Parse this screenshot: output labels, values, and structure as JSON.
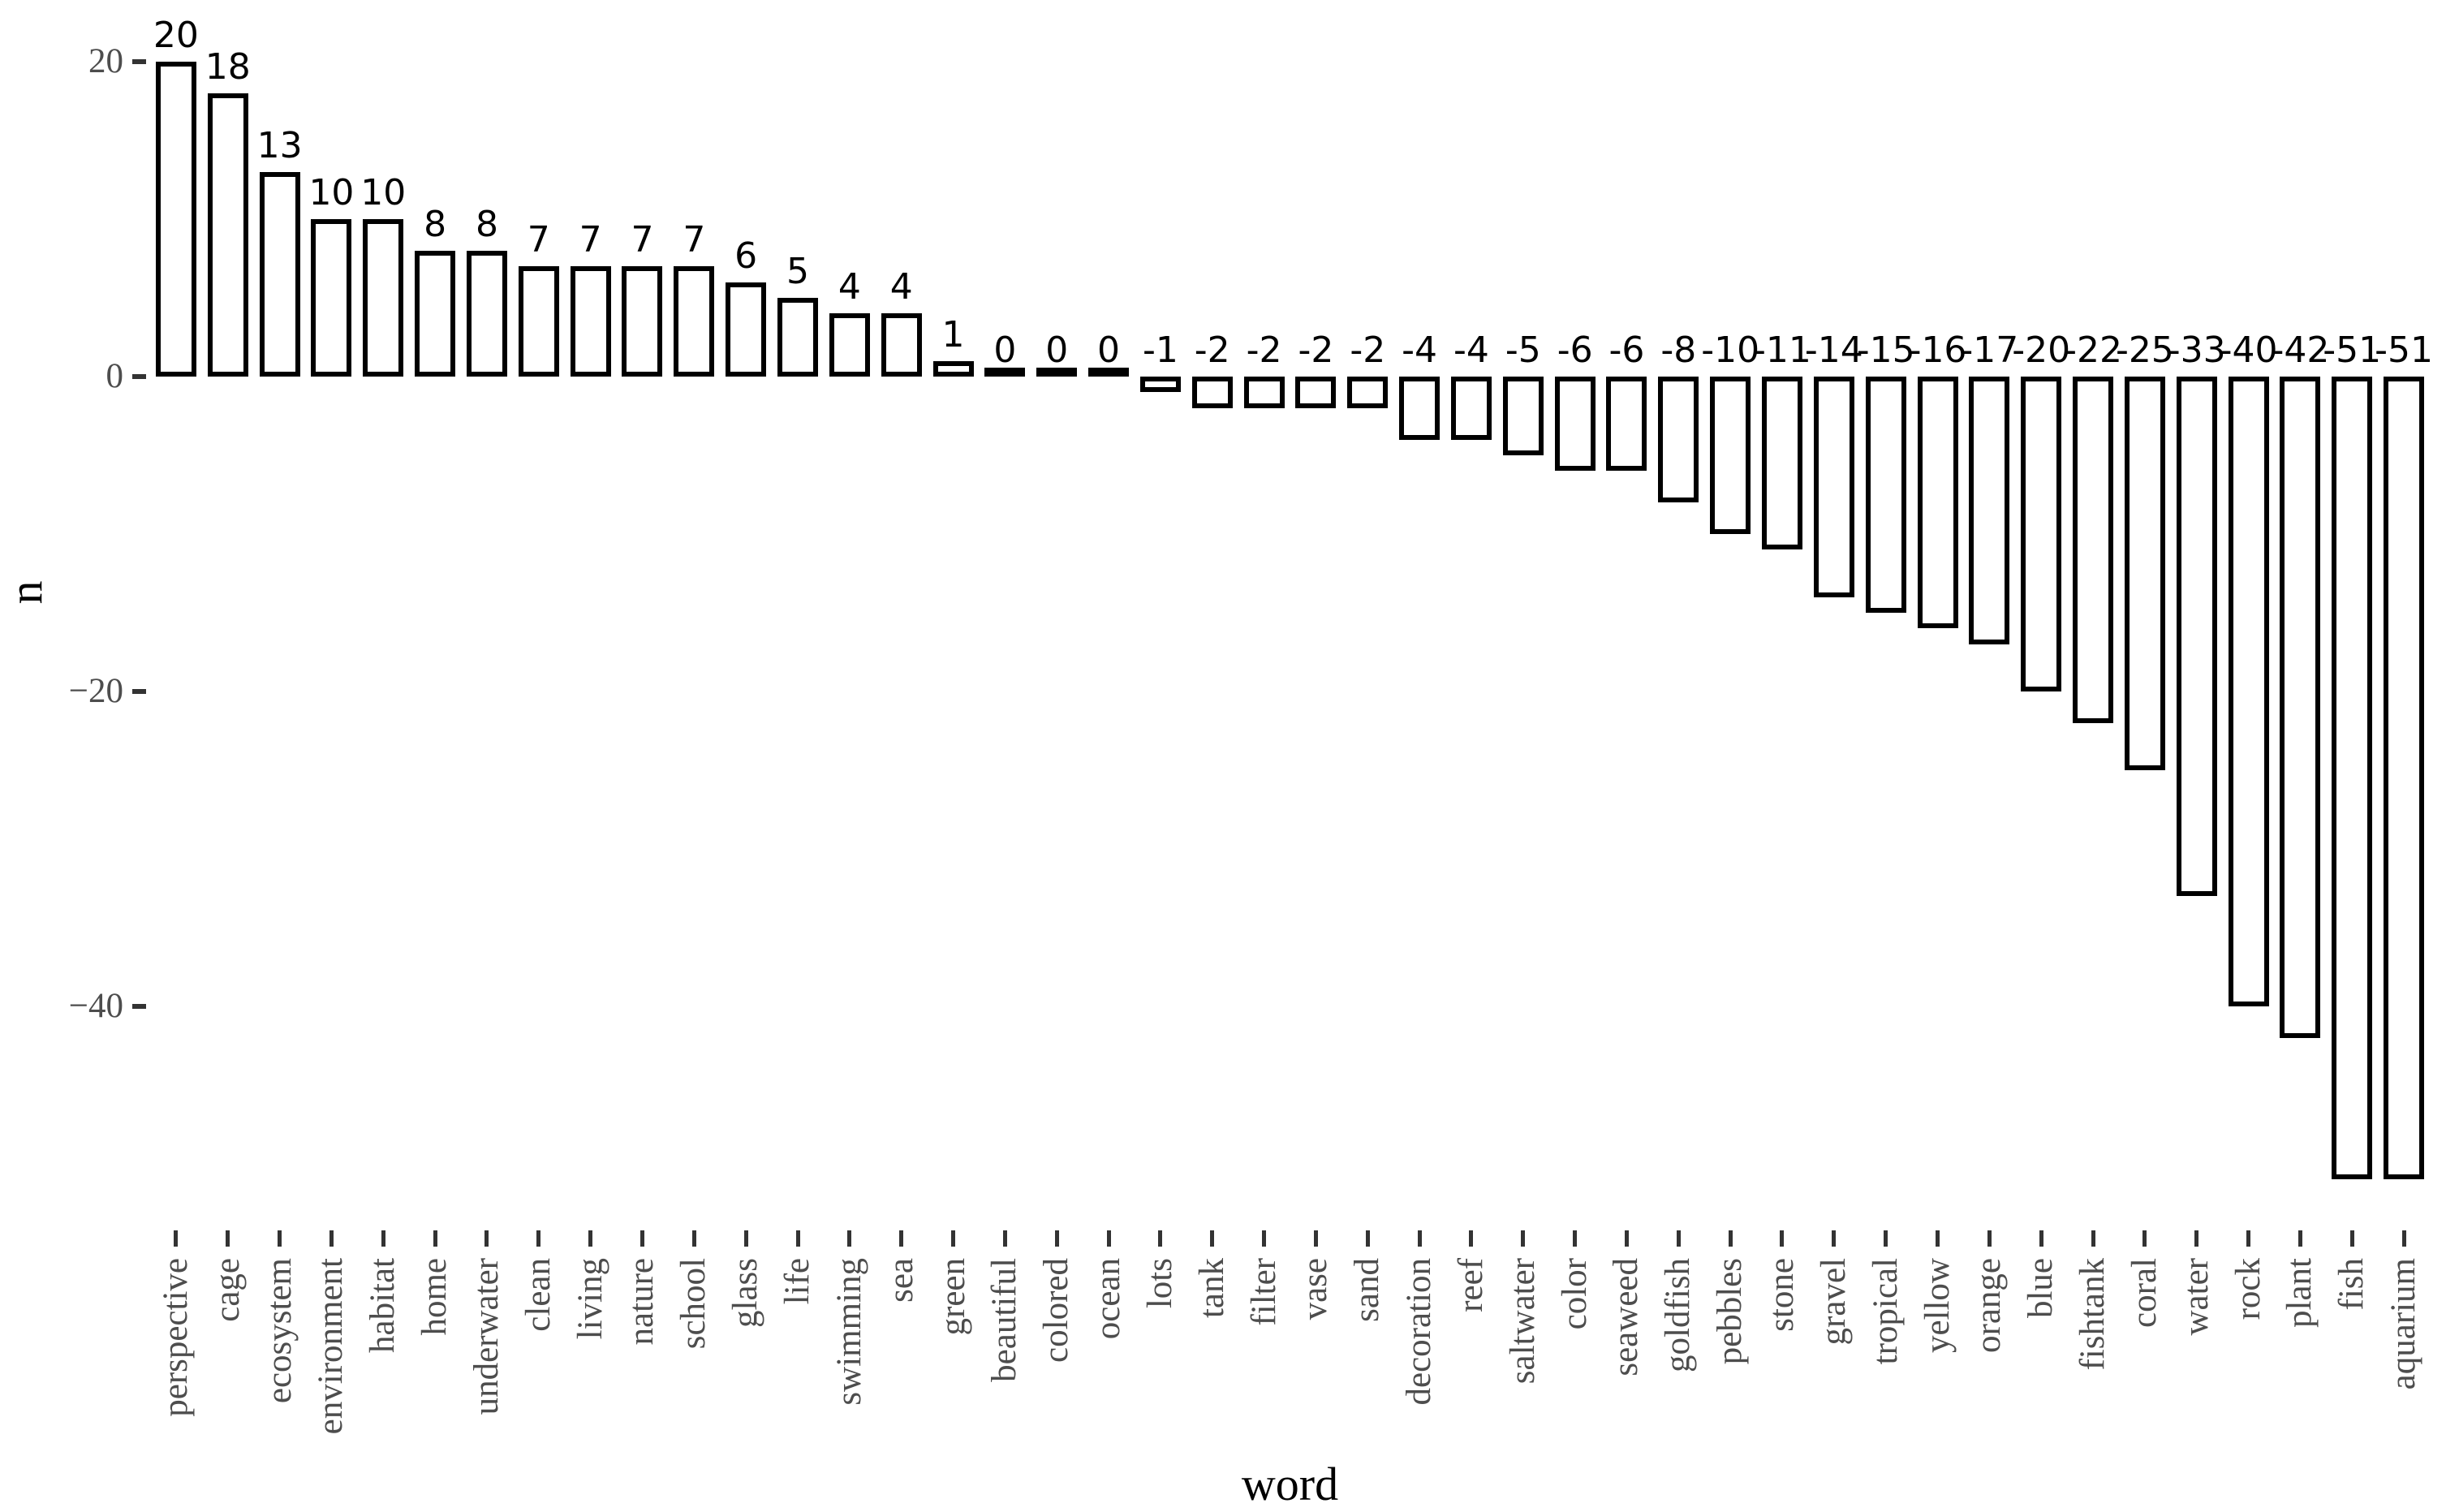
{
  "chart_data": {
    "type": "bar",
    "title": "",
    "xlabel": "word",
    "ylabel": "n",
    "categories": [
      "perspective",
      "cage",
      "ecosystem",
      "environment",
      "habitat",
      "home",
      "underwater",
      "clean",
      "living",
      "nature",
      "school",
      "glass",
      "life",
      "swimming",
      "sea",
      "green",
      "beautiful",
      "colored",
      "ocean",
      "lots",
      "tank",
      "filter",
      "vase",
      "sand",
      "decoration",
      "reef",
      "saltwater",
      "color",
      "seaweed",
      "goldfish",
      "pebbles",
      "stone",
      "gravel",
      "tropical",
      "yellow",
      "orange",
      "blue",
      "fishtank",
      "coral",
      "water",
      "rock",
      "plant",
      "fish",
      "aquarium"
    ],
    "values": [
      20,
      18,
      13,
      10,
      10,
      8,
      8,
      7,
      7,
      7,
      7,
      6,
      5,
      4,
      4,
      1,
      0,
      0,
      0,
      -1,
      -2,
      -2,
      -2,
      -2,
      -4,
      -4,
      -5,
      -6,
      -6,
      -8,
      -10,
      -11,
      -14,
      -15,
      -16,
      -17,
      -20,
      -22,
      -25,
      -33,
      -40,
      -42,
      -51,
      -51
    ],
    "value_labels": [
      "20",
      "18",
      "13",
      "10",
      "10",
      "8",
      "8",
      "7",
      "7",
      "7",
      "7",
      "6",
      "5",
      "4",
      "4",
      "1",
      "0",
      "0",
      "0",
      "-1",
      "-2",
      "-2",
      "-2",
      "-2",
      "-4",
      "-4",
      "-5",
      "-6",
      "-6",
      "-8",
      "-10",
      "-11",
      "-14",
      "-15",
      "-16",
      "-17",
      "-20",
      "-22",
      "-25",
      "-33",
      "-40",
      "-42",
      "-51",
      "-51"
    ],
    "yticks": [
      20,
      0,
      -20,
      -40
    ],
    "ytick_labels": [
      "20",
      "0",
      "−20",
      "−40"
    ],
    "ylim": [
      -55,
      23
    ],
    "grid": false,
    "legend": false,
    "bar_fill": "#ffffff",
    "bar_stroke": "#000000",
    "value_label_color": "#000000",
    "axis_text_color": "#4d4d4d",
    "tick_mark_color": "#333333",
    "background": "#ffffff"
  }
}
